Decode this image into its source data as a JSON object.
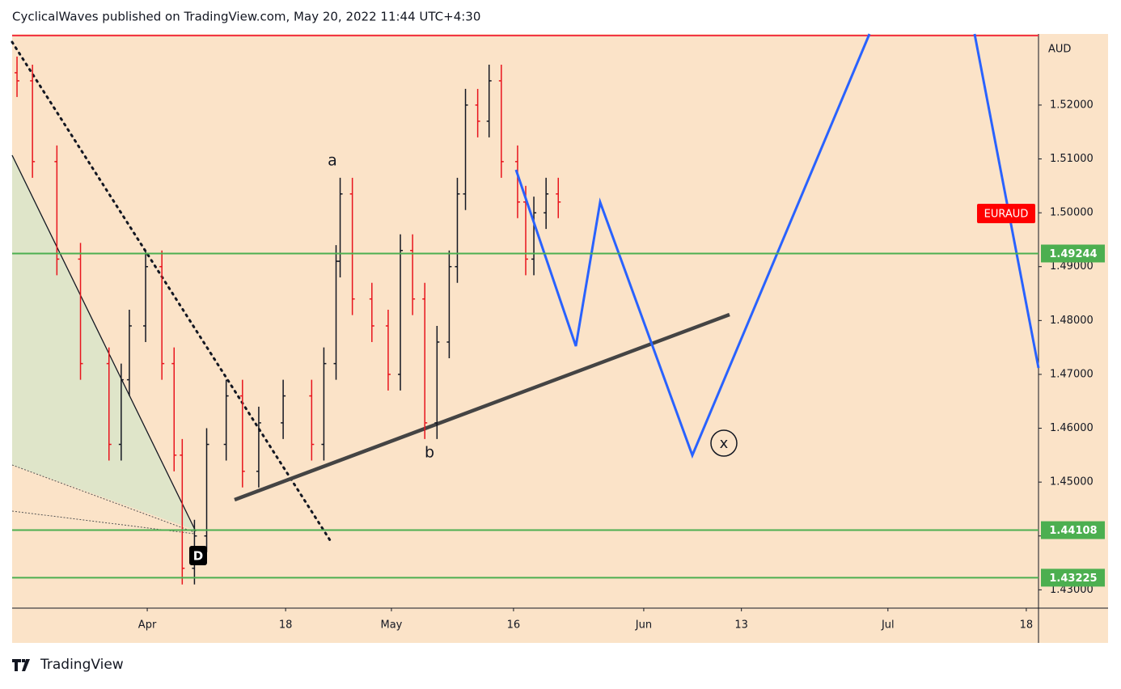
{
  "header": "CyclicalWaves published on TradingView.com, May 20, 2022 11:44 UTC+4:30",
  "footer": "TradingView",
  "chart_data": {
    "type": "ohlc",
    "symbol": "EURAUD",
    "currency": "AUD",
    "x": [
      -16,
      -14.1,
      -11.1,
      -8.2,
      -4.7,
      -3.2,
      -2.2,
      -0.2,
      1.8,
      3.3,
      4.3,
      5.8,
      7.3,
      9.7,
      11.7,
      13.7,
      16.7,
      20.2,
      21.7,
      23.2,
      23.7,
      25.2,
      27.6,
      29.6,
      31.1,
      32.6,
      34.1,
      35.6,
      37.1,
      38.1,
      39.1,
      40.6,
      42.0,
      43.5,
      45.5,
      46.5,
      47.5,
      49.0,
      50.5
    ],
    "open": [
      1.526,
      1.5245,
      1.5095,
      1.4914,
      1.472,
      1.457,
      1.469,
      1.479,
      1.49,
      1.472,
      1.455,
      1.434,
      1.44,
      1.457,
      1.466,
      1.452,
      1.461,
      1.466,
      1.457,
      1.472,
      1.491,
      1.5035,
      1.484,
      1.479,
      1.47,
      1.493,
      1.484,
      1.461,
      1.476,
      1.49,
      1.5035,
      1.52,
      1.517,
      1.5245,
      1.5095,
      1.502,
      1.4914,
      1.5,
      1.5035
    ],
    "high": [
      1.529,
      1.5275,
      1.5125,
      1.4944,
      1.475,
      1.472,
      1.482,
      1.493,
      1.493,
      1.475,
      1.458,
      1.443,
      1.46,
      1.469,
      1.469,
      1.464,
      1.469,
      1.469,
      1.475,
      1.494,
      1.5065,
      1.5065,
      1.487,
      1.482,
      1.496,
      1.496,
      1.487,
      1.479,
      1.493,
      1.5065,
      1.523,
      1.523,
      1.5275,
      1.5275,
      1.5125,
      1.505,
      1.503,
      1.5065,
      1.5065
    ],
    "low": [
      1.5215,
      1.5065,
      1.4884,
      1.469,
      1.454,
      1.454,
      1.466,
      1.476,
      1.469,
      1.452,
      1.431,
      1.431,
      1.437,
      1.454,
      1.449,
      1.449,
      1.458,
      1.454,
      1.454,
      1.469,
      1.488,
      1.481,
      1.476,
      1.467,
      1.467,
      1.481,
      1.458,
      1.458,
      1.473,
      1.487,
      1.5005,
      1.514,
      1.514,
      1.5065,
      1.499,
      1.4884,
      1.4884,
      1.497,
      1.499
    ],
    "close": [
      1.5245,
      1.5095,
      1.4914,
      1.472,
      1.457,
      1.469,
      1.479,
      1.49,
      1.472,
      1.455,
      1.434,
      1.44,
      1.457,
      1.466,
      1.452,
      1.461,
      1.466,
      1.457,
      1.472,
      1.491,
      1.5035,
      1.484,
      1.479,
      1.47,
      1.493,
      1.484,
      1.461,
      1.476,
      1.49,
      1.5035,
      1.52,
      1.517,
      1.5245,
      1.5095,
      1.502,
      1.4914,
      1.5,
      1.5035,
      1.502
    ],
    "up_color": "#131722",
    "down_color": "#e8141d",
    "xlim": [
      -16.6,
      109.5
    ],
    "xticks": [
      {
        "value": 0,
        "label": "Apr"
      },
      {
        "value": 17,
        "label": "18"
      },
      {
        "value": 30,
        "label": "May"
      },
      {
        "value": 45,
        "label": "16"
      },
      {
        "value": 61,
        "label": "Jun"
      },
      {
        "value": 73,
        "label": "13"
      },
      {
        "value": 91,
        "label": "Jul"
      },
      {
        "value": 108,
        "label": "18"
      }
    ],
    "ylim": [
      1.4266,
      1.5332
    ],
    "yticks": [
      {
        "value": 1.43,
        "label": "1.43000"
      },
      {
        "value": 1.44,
        "label": "1.44000"
      },
      {
        "value": 1.45,
        "label": "1.45000"
      },
      {
        "value": 1.46,
        "label": "1.46000"
      },
      {
        "value": 1.47,
        "label": "1.47000"
      },
      {
        "value": 1.48,
        "label": "1.48000"
      },
      {
        "value": 1.49,
        "label": "1.49000"
      },
      {
        "value": 1.5,
        "label": "1.50000"
      },
      {
        "value": 1.51,
        "label": "1.51000"
      },
      {
        "value": 1.52,
        "label": "1.52000"
      }
    ],
    "levels": [
      1.49244,
      1.44108,
      1.43225
    ],
    "level_color": "#4caf50",
    "annotations": [
      "a",
      "b",
      "x",
      "D"
    ]
  }
}
